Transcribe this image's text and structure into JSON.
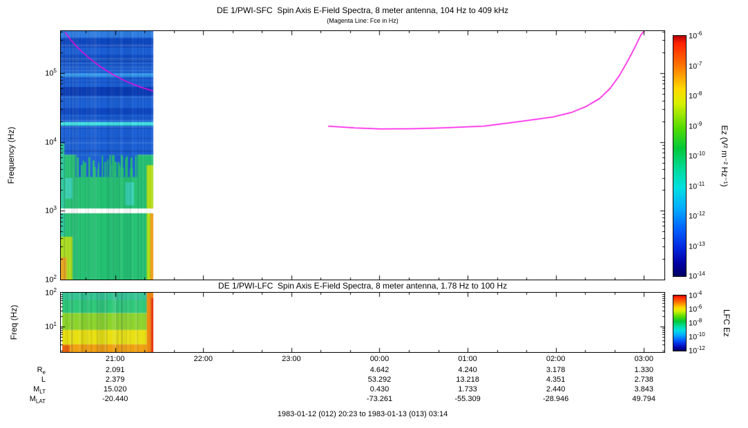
{
  "figure": {
    "background": "#ffffff",
    "caption": "1983-01-12 (012) 20:23 to 1983-01-13 (013) 03:14"
  },
  "sfc": {
    "title": "DE 1/PWI-SFC  Spin Axis E-Field Spectra, 8 meter antenna, 104 Hz to 409 kHz",
    "subtitle": "(Magenta Line: Fce in Hz)",
    "ylabel": "Frequency (Hz)",
    "colorbar_label": "Ez (V² m⁻² Hz⁻¹)"
  },
  "lfc": {
    "title": "DE 1/PWI-LFC  Spin Axis E-Field Spectra, 8 meter antenna, 1.78 Hz to 100 Hz",
    "ylabel": "Freq (Hz)",
    "colorbar_label": "LFC Ez"
  },
  "time_axis": {
    "start_label": "20:23",
    "end_label": "03:14",
    "total_minutes": 411,
    "ticks": [
      {
        "minutes": 37,
        "label": "21:00"
      },
      {
        "minutes": 97,
        "label": "22:00"
      },
      {
        "minutes": 157,
        "label": "23:00"
      },
      {
        "minutes": 217,
        "label": "00:00"
      },
      {
        "minutes": 277,
        "label": "01:00"
      },
      {
        "minutes": 337,
        "label": "02:00"
      },
      {
        "minutes": 397,
        "label": "03:00"
      }
    ],
    "minor_tick_start": 17,
    "minor_tick_step": 20
  },
  "ephemeris": {
    "rows": [
      {
        "main": "R",
        "sub": "e",
        "values": [
          "2.091",
          "",
          "",
          "4.642",
          "4.240",
          "3.178",
          "1.330"
        ]
      },
      {
        "main": "L",
        "sub": "",
        "values": [
          "2.379",
          "",
          "",
          "53.292",
          "13.218",
          "4.351",
          "2.738"
        ]
      },
      {
        "main": "M",
        "sub": "LT",
        "values": [
          "15.020",
          "",
          "",
          "0.430",
          "1.733",
          "2.440",
          "3.843"
        ]
      },
      {
        "main": "M",
        "sub": "LAT",
        "values": [
          "-20.440",
          "",
          "",
          "-73.261",
          "-55.309",
          "-28.946",
          "49.794"
        ]
      }
    ]
  },
  "chart_data": [
    {
      "type": "heatmap",
      "panel": "sfc",
      "title": "DE 1/PWI-SFC  Spin Axis E-Field Spectra, 8 meter antenna, 104 Hz to 409 kHz",
      "subtitle": "(Magenta Line: Fce in Hz)",
      "x_axis": {
        "unit": "UT",
        "start": "20:23",
        "end": "03:14",
        "total_minutes": 411,
        "tick_labels": [
          "21:00",
          "22:00",
          "23:00",
          "00:00",
          "01:00",
          "02:00",
          "03:00"
        ]
      },
      "y_axis": {
        "label": "Frequency (Hz)",
        "scale": "log",
        "min_hz": 100,
        "max_hz": 409000,
        "tick_exponents": [
          5,
          4,
          3,
          2
        ]
      },
      "colorbar": {
        "label": "Ez (V² m⁻² Hz⁻¹)",
        "scale": "log",
        "min": 1e-14,
        "max": 1e-06,
        "tick_exponents": [
          -6,
          -7,
          -8,
          -9,
          -10,
          -11,
          -12,
          -13,
          -14
        ]
      },
      "data_extent_minutes": [
        0,
        63
      ],
      "regions": [
        {
          "t0": 0,
          "t1": 63,
          "f0": 6500,
          "f1": 409000,
          "color": "#1a5fd6"
        },
        {
          "t0": 0,
          "t1": 63,
          "f0": 330000,
          "f1": 409000,
          "color": "#2f7de2"
        },
        {
          "t0": 0,
          "t1": 63,
          "f0": 235000,
          "f1": 320000,
          "color": "#0d47c0"
        },
        {
          "t0": 0,
          "t1": 63,
          "f0": 140000,
          "f1": 185000,
          "color": "#0e4cc4"
        },
        {
          "t0": 0,
          "t1": 63,
          "f0": 88000,
          "f1": 100000,
          "color": "#2f93e8"
        },
        {
          "t0": 0,
          "t1": 63,
          "f0": 47000,
          "f1": 63000,
          "color": "#0a3cb4"
        },
        {
          "t0": 0,
          "t1": 63,
          "f0": 25000,
          "f1": 31000,
          "color": "#0d47c0"
        },
        {
          "t0": 0,
          "t1": 63,
          "f0": 17200,
          "f1": 19500,
          "color": "#3ae2e2"
        },
        {
          "t0": 0,
          "t1": 63,
          "f0": 100,
          "f1": 6500,
          "color": "#25c172"
        },
        {
          "t0": 10,
          "t1": 52,
          "f0": 3100,
          "f1": 6500,
          "color": "#1a5fd6"
        },
        {
          "t0": 3,
          "t1": 8,
          "f0": 1500,
          "f1": 3000,
          "color": "#38d0b0"
        },
        {
          "t0": 44,
          "t1": 50,
          "f0": 1200,
          "f1": 2600,
          "color": "#38d0b0"
        },
        {
          "t0": 0,
          "t1": 2.5,
          "f0": 100,
          "f1": 9500,
          "color": "#2ec89e"
        },
        {
          "t0": 0,
          "t1": 8,
          "f0": 100,
          "f1": 420,
          "color": "#aadc1e"
        },
        {
          "t0": 0,
          "t1": 4,
          "f0": 100,
          "f1": 210,
          "color": "#e8a51e"
        },
        {
          "t0": 58.5,
          "t1": 63,
          "f0": 100,
          "f1": 4600,
          "color": "#b4e018"
        },
        {
          "t0": 61,
          "t1": 63,
          "f0": 100,
          "f1": 1100,
          "color": "#f09a10"
        },
        {
          "t0": 0,
          "t1": 63,
          "f0": 920,
          "f1": 1080,
          "color": "#ffffff"
        }
      ],
      "spikes": {
        "t0": 10,
        "t1": 52,
        "f_base": 3100,
        "f_top_min": 3800,
        "f_top_max": 6500,
        "count": 42,
        "color": "#25c172",
        "seed": 7
      },
      "hlines": {
        "f0": 7000,
        "f1": 380000,
        "count": 26,
        "alpha": 0.18,
        "seed": 5
      },
      "texture": {
        "count": 80,
        "alpha": 0.07,
        "seed": 13
      },
      "fce_line": {
        "label": "Fce (Hz)",
        "color": "#ff00e6",
        "width": 1.5,
        "segments": [
          [
            [
              3,
              390000
            ],
            [
              6,
              320000
            ],
            [
              10,
              255000
            ],
            [
              15,
              200000
            ],
            [
              21,
              155000
            ],
            [
              28,
              120000
            ],
            [
              36,
              94000
            ],
            [
              45,
              75000
            ],
            [
              54,
              63000
            ],
            [
              63,
              55000
            ]
          ],
          [
            [
              182,
              17000
            ],
            [
              200,
              16000
            ],
            [
              217,
              15500
            ],
            [
              240,
              15600
            ],
            [
              260,
              16000
            ],
            [
              288,
              17000
            ],
            [
              310,
              19500
            ],
            [
              335,
              23000
            ],
            [
              348,
              27000
            ],
            [
              358,
              33000
            ],
            [
              367,
              43000
            ],
            [
              374,
              60000
            ],
            [
              380,
              90000
            ],
            [
              386,
              150000
            ],
            [
              391,
              240000
            ],
            [
              395,
              360000
            ],
            [
              398,
              430000
            ]
          ]
        ]
      }
    },
    {
      "type": "heatmap",
      "panel": "lfc",
      "title": "DE 1/PWI-LFC  Spin Axis E-Field Spectra, 8 meter antenna, 1.78 Hz to 100 Hz",
      "x_axis": {
        "unit": "UT",
        "start": "20:23",
        "end": "03:14",
        "total_minutes": 411,
        "tick_labels": [
          "21:00",
          "22:00",
          "23:00",
          "00:00",
          "01:00",
          "02:00",
          "03:00"
        ]
      },
      "y_axis": {
        "label": "Freq (Hz)",
        "scale": "log",
        "min_hz": 1.78,
        "max_hz": 100,
        "tick_exponents": [
          2,
          1
        ]
      },
      "colorbar": {
        "label": "LFC Ez",
        "scale": "log",
        "min": 1e-12,
        "max": 0.0001,
        "tick_exponents": [
          -4,
          -6,
          -8,
          -10,
          -12
        ]
      },
      "data_extent_minutes": [
        1,
        63
      ],
      "regions": [
        {
          "t0": 1,
          "t1": 63,
          "f0": 25,
          "f1": 100,
          "color": "#2ec878"
        },
        {
          "t0": 1,
          "t1": 63,
          "f0": 60,
          "f1": 100,
          "color": "#34c492"
        },
        {
          "t0": 1,
          "t1": 63,
          "f0": 8,
          "f1": 25,
          "color": "#8cd42c"
        },
        {
          "t0": 1,
          "t1": 63,
          "f0": 3,
          "f1": 8,
          "color": "#e8e010"
        },
        {
          "t0": 1,
          "t1": 63,
          "f0": 1.78,
          "f1": 3,
          "color": "#f0a010"
        },
        {
          "t0": 1,
          "t1": 6,
          "f0": 1.78,
          "f1": 2.8,
          "color": "#e86410"
        },
        {
          "t0": 58.5,
          "t1": 63,
          "f0": 1.78,
          "f1": 100,
          "color": "#f08810"
        },
        {
          "t0": 61.5,
          "t1": 63,
          "f0": 1.78,
          "f1": 70,
          "color": "#e63410"
        }
      ],
      "texture": {
        "count": 70,
        "alpha": 0.1,
        "seed": 21
      }
    }
  ]
}
